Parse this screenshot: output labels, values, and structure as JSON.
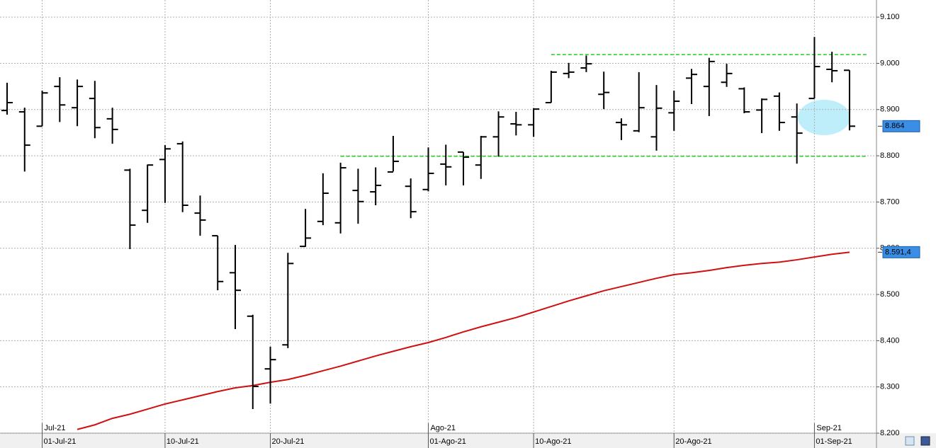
{
  "chart_data": {
    "type": "ohlc",
    "categories": [
      null,
      null,
      "01-Jul-21",
      null,
      null,
      null,
      null,
      null,
      null,
      "10-Jul-21",
      null,
      null,
      null,
      null,
      null,
      "20-Jul-21",
      null,
      null,
      null,
      null,
      null,
      null,
      null,
      null,
      "01-Ago-21",
      null,
      null,
      null,
      null,
      null,
      "10-Ago-21",
      null,
      null,
      null,
      null,
      null,
      null,
      null,
      "20-Ago-21",
      null,
      null,
      null,
      null,
      null,
      null,
      null,
      "01-Sep-21",
      null,
      null
    ],
    "month_labels": [
      null,
      null,
      "Jul-21",
      null,
      null,
      null,
      null,
      null,
      null,
      null,
      null,
      null,
      null,
      null,
      null,
      null,
      null,
      null,
      null,
      null,
      null,
      null,
      null,
      null,
      "Ago-21",
      null,
      null,
      null,
      null,
      null,
      null,
      null,
      null,
      null,
      null,
      null,
      null,
      null,
      null,
      null,
      null,
      null,
      null,
      null,
      null,
      null,
      "Sep-21",
      null,
      null
    ],
    "open": [
      8898,
      8895,
      8864,
      8950,
      8904,
      8924,
      8880,
      8769,
      8682,
      8792,
      8826,
      8676,
      8627,
      8547,
      8453,
      8339,
      8391,
      8604,
      8658,
      8655,
      8725,
      8722,
      8765,
      8734,
      8727,
      8782,
      8808,
      8780,
      8841,
      8869,
      8867,
      8915,
      8978,
      8990,
      8933,
      8872,
      8854,
      8841,
      8893,
      8968,
      8950,
      8959,
      8945,
      8899,
      8929,
      8884,
      8924,
      8987,
      8985
    ],
    "high": [
      8958,
      8904,
      8941,
      8970,
      8965,
      8962,
      8904,
      8772,
      8781,
      8823,
      8831,
      8714,
      8627,
      8607,
      8456,
      8387,
      8590,
      8685,
      8762,
      8785,
      8772,
      8775,
      8843,
      8751,
      8818,
      8824,
      8808,
      8843,
      8896,
      8895,
      8903,
      8984,
      9001,
      9017,
      8982,
      8881,
      8981,
      8953,
      8941,
      8988,
      9012,
      8999,
      8948,
      8924,
      8937,
      8913,
      9057,
      9025,
      8985
    ],
    "low": [
      8889,
      8766,
      8864,
      8873,
      8864,
      8838,
      8826,
      8598,
      8655,
      8698,
      8678,
      8627,
      8509,
      8425,
      8252,
      8264,
      8384,
      8603,
      8650,
      8632,
      8653,
      8693,
      8766,
      8665,
      8723,
      8736,
      8736,
      8750,
      8798,
      8844,
      8841,
      8915,
      8968,
      8981,
      8901,
      8834,
      8851,
      8811,
      8854,
      8912,
      8886,
      8949,
      8892,
      8849,
      8854,
      8783,
      8924,
      8959,
      8855
    ],
    "close": [
      8915,
      8823,
      8936,
      8910,
      8950,
      8861,
      8857,
      8650,
      8780,
      8815,
      8693,
      8661,
      8528,
      8509,
      8301,
      8359,
      8567,
      8622,
      8719,
      8774,
      8701,
      8736,
      8788,
      8679,
      8762,
      8776,
      8797,
      8841,
      8884,
      8867,
      8901,
      8981,
      8981,
      8999,
      8937,
      8867,
      8904,
      8903,
      8918,
      8976,
      9004,
      8978,
      8895,
      8922,
      8872,
      8849,
      8993,
      8984,
      8864
    ],
    "color": "#000000",
    "moving_average": {
      "color": "#d01010",
      "values": [
        null,
        null,
        null,
        null,
        8208,
        8218,
        8232,
        8241,
        8252,
        8263,
        8272,
        8281,
        8290,
        8298,
        8303,
        8310,
        8316,
        8325,
        8335,
        8345,
        8356,
        8367,
        8377,
        8387,
        8396,
        8407,
        8419,
        8430,
        8440,
        8450,
        8462,
        8474,
        8486,
        8497,
        8508,
        8517,
        8526,
        8535,
        8543,
        8547,
        8552,
        8558,
        8563,
        8567,
        8570,
        8575,
        8581,
        8587,
        8591.4
      ]
    },
    "levels": {
      "color": "#22cc22",
      "values": [
        9019,
        8799
      ]
    },
    "last_labels": [
      {
        "value": 8864,
        "label": "8.864"
      },
      {
        "value": 8591.4,
        "label": "8.591,4"
      }
    ],
    "ylim": [
      8200,
      9137
    ],
    "yticks": [
      {
        "value": 8200,
        "label": "8.200"
      },
      {
        "value": 8300,
        "label": "8.300"
      },
      {
        "value": 8400,
        "label": "8.400"
      },
      {
        "value": 8500,
        "label": "8.500"
      },
      {
        "value": 8600,
        "label": "8.600"
      },
      {
        "value": 8700,
        "label": "8.700"
      },
      {
        "value": 8800,
        "label": "8.800"
      },
      {
        "value": 8900,
        "label": "8.900"
      },
      {
        "value": 9000,
        "label": "9.000"
      },
      {
        "value": 9100,
        "label": "9.100"
      }
    ],
    "grid": true
  }
}
